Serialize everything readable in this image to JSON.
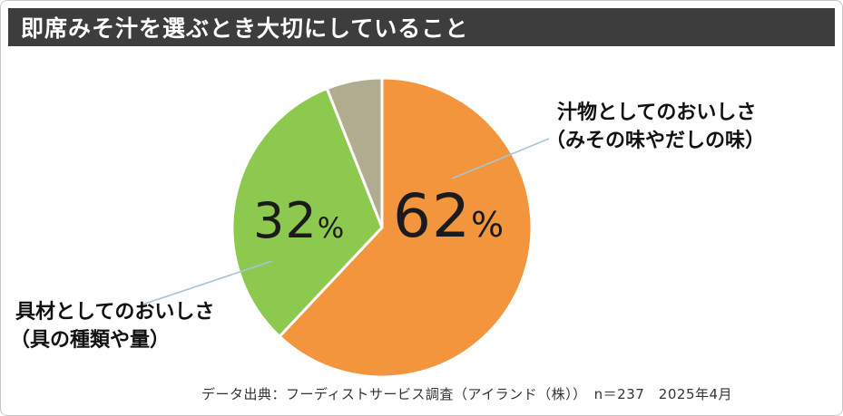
{
  "header": {
    "title": "即席みそ汁を選ぶとき大切にしていること"
  },
  "percent_sign": "%",
  "annotations": {
    "right": {
      "line1": "汁物としてのおいしさ",
      "line2": "（みその味やだしの味）"
    },
    "left": {
      "line1": "具材としてのおいしさ",
      "line2": "（具の種類や量）"
    }
  },
  "footer": {
    "source_note": "データ出典：フーディストサービス調査（アイランド（株））　n＝237　2025年4月"
  },
  "colors": {
    "title_bar": "#3d3d3d",
    "orange": "#F2953C",
    "green": "#8DC94F",
    "gray_olive": "#AFAC90",
    "leader_line": "#A5C4D6",
    "text_dark": "#1b1b1b"
  },
  "chart_data": {
    "type": "pie",
    "title": "即席みそ汁を選ぶとき大切にしていること",
    "units": "%",
    "start_angle": "top",
    "direction": "clockwise",
    "legend": "none",
    "slices": [
      {
        "label": "汁物としてのおいしさ（みその味やだしの味）",
        "value": 62,
        "color": "#F2953C"
      },
      {
        "label": "具材としてのおいしさ（具の種類や量）",
        "value": 32,
        "color": "#8DC94F"
      },
      {
        "label": "",
        "value": 6,
        "color": "#AFAC90"
      }
    ],
    "source_note": "データ出典：フーディストサービス調査（アイランド（株））　n＝237　2025年4月"
  }
}
